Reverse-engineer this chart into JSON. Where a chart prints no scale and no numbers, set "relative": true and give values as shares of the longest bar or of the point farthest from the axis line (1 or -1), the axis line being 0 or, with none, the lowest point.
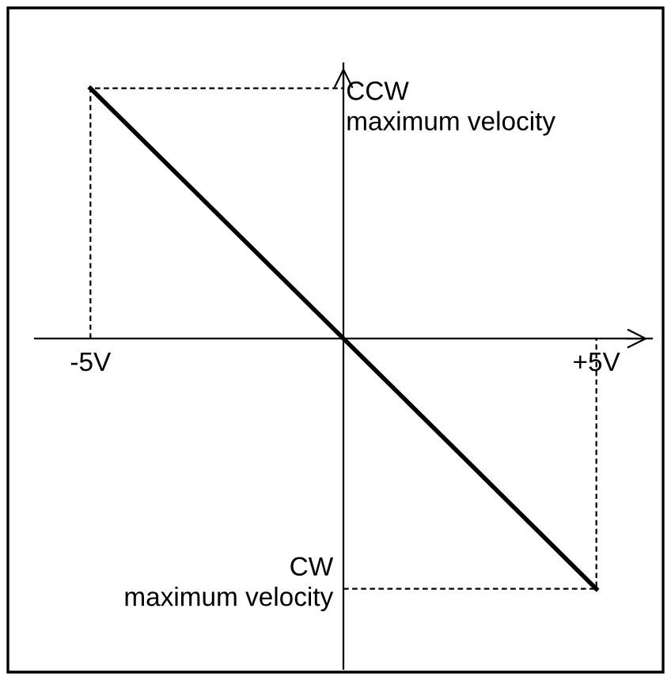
{
  "chart_data": {
    "type": "line",
    "relative": true,
    "xlim": [
      -6.1,
      6.1
    ],
    "xticks": [
      {
        "value": -5,
        "label": "-5V"
      },
      {
        "value": 5,
        "label": "+5V"
      }
    ],
    "series": [
      {
        "color": "#000000",
        "x": [
          -5,
          5
        ],
        "values": [
          1,
          -1
        ],
        "line_style": "solid"
      },
      {
        "color": "#000000",
        "x": [
          -5,
          -5,
          0
        ],
        "values": [
          0,
          1,
          1
        ],
        "line_style": "dashed"
      },
      {
        "color": "#000000",
        "x": [
          0,
          5,
          5
        ],
        "values": [
          -1,
          -1,
          0
        ],
        "line_style": "dashed"
      }
    ],
    "annotations": [
      {
        "text": "CCW\nmaximum velocity",
        "x": 0,
        "y": 1
      },
      {
        "text": "CW\nmaximum velocity",
        "x": 0,
        "y": -1
      }
    ],
    "grid": false,
    "legend": false
  }
}
